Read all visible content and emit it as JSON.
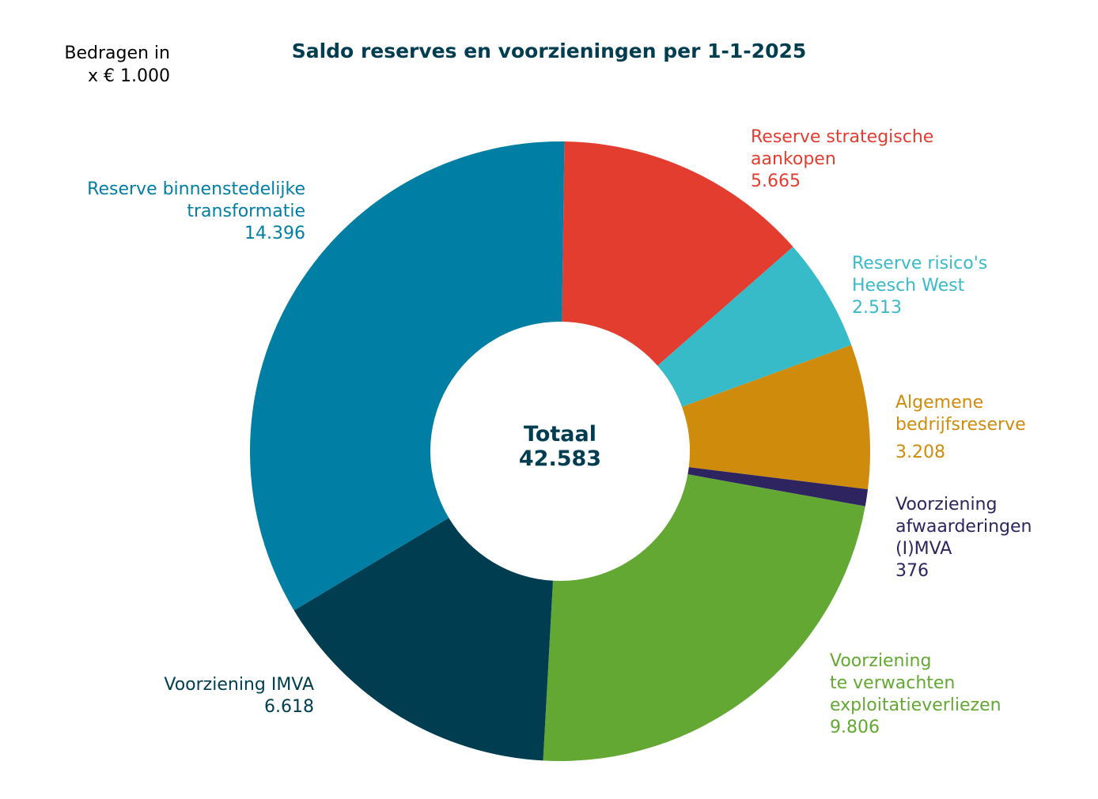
{
  "unit_note": [
    "Bedragen in",
    "x € 1.000"
  ],
  "colors": {
    "title": "#003d50",
    "center_text": "#003d50"
  },
  "chart_data": {
    "type": "pie",
    "variant": "donut",
    "title": "Saldo reserves en voorzieningen per 1-1-2025",
    "center": [
      "Totaal",
      "42.583"
    ],
    "total": 42583,
    "slices": [
      {
        "name": "Reserve strategische aankopen",
        "label_lines": [
          "Reserve strategische",
          "aankopen"
        ],
        "value_label": "5.665",
        "value": 5665,
        "color": "#e33d30"
      },
      {
        "name": "Reserve risico's Heesch West",
        "label_lines": [
          "Reserve risico's",
          "Heesch West"
        ],
        "value_label": "2.513",
        "value": 2513,
        "color": "#38bbc8"
      },
      {
        "name": "Algemene bedrijfsreserve",
        "label_lines": [
          "Algemene",
          "bedrijfsreserve"
        ],
        "value_label": "3.208",
        "value": 3208,
        "color": "#cf8b0c"
      },
      {
        "name": "Voorziening afwaarderingen (I)MVA",
        "label_lines": [
          "Voorziening",
          "afwaarderingen",
          "(I)MVA"
        ],
        "value_label": "376",
        "value": 376,
        "color": "#2e2560"
      },
      {
        "name": "Voorziening te verwachten exploitatieverliezen",
        "label_lines": [
          "Voorziening",
          "te verwachten",
          "exploitatieverliezen"
        ],
        "value_label": "9.806",
        "value": 9806,
        "color": "#62a832"
      },
      {
        "name": "Voorziening IMVA",
        "label_lines": [
          "Voorziening IMVA"
        ],
        "value_label": "6.618",
        "value": 6618,
        "color": "#003d50"
      },
      {
        "name": "Reserve binnenstedelijke transformatie",
        "label_lines": [
          "Reserve binnenstedelijke",
          "transformatie"
        ],
        "value_label": "14.396",
        "value": 14396,
        "color": "#007ea3"
      }
    ]
  }
}
